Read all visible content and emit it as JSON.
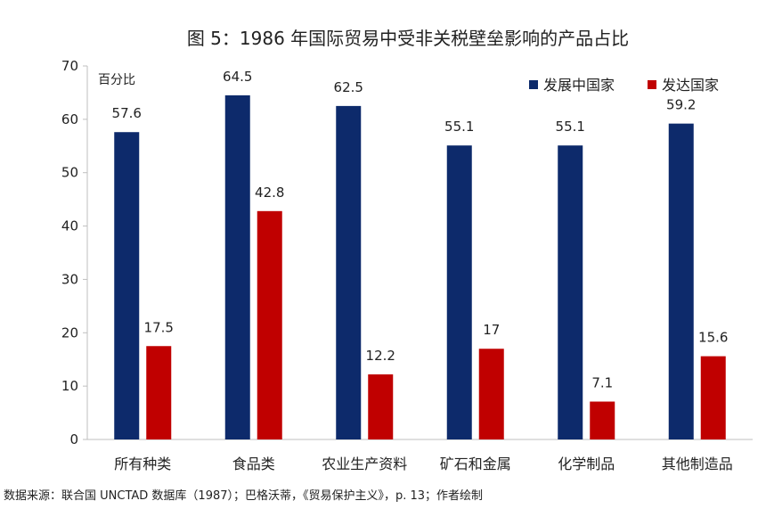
{
  "chart_data": {
    "type": "bar",
    "title": "图 5：1986 年国际贸易中受非关税壁垒影响的产品占比",
    "unit_label": "百分比",
    "categories": [
      "所有种类",
      "食品类",
      "农业生产资料",
      "矿石和金属",
      "化学制品",
      "其他制造品"
    ],
    "series": [
      {
        "name": "发展中国家",
        "color": "#0d2a6b",
        "values": [
          57.6,
          64.5,
          62.5,
          55.1,
          55.1,
          59.2
        ],
        "labels": [
          "57.6",
          "64.5",
          "62.5",
          "55.1",
          "55.1",
          "59.2"
        ]
      },
      {
        "name": "发达国家",
        "color": "#c00000",
        "values": [
          17.5,
          42.8,
          12.2,
          17,
          7.1,
          15.6
        ],
        "labels": [
          "17.5",
          "42.8",
          "12.2",
          "17",
          "7.1",
          "15.6"
        ]
      }
    ],
    "ylim": [
      0,
      70
    ],
    "yticks": [
      0,
      10,
      20,
      30,
      40,
      50,
      60,
      70
    ],
    "legend_position": "top-right",
    "grid": false
  },
  "source": "数据来源：联合国 UNCTAD 数据库（1987）；巴格沃蒂，《贸易保护主义》，p. 13；作者绘制"
}
